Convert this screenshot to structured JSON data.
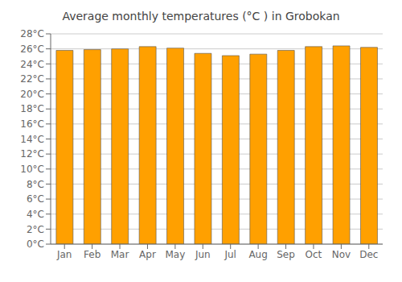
{
  "chart_data": {
    "type": "bar",
    "title": "Average monthly temperatures (°C ) in Grobokan",
    "categories": [
      "Jan",
      "Feb",
      "Mar",
      "Apr",
      "May",
      "Jun",
      "Jul",
      "Aug",
      "Sep",
      "Oct",
      "Nov",
      "Dec"
    ],
    "values": [
      25.8,
      25.9,
      26.0,
      26.3,
      26.1,
      25.4,
      25.1,
      25.3,
      25.8,
      26.3,
      26.4,
      26.2
    ],
    "color": "#FFA000",
    "ylim": [
      0,
      28
    ],
    "yticks": [
      {
        "value": 0,
        "label": "0°C"
      },
      {
        "value": 2,
        "label": "2°C"
      },
      {
        "value": 4,
        "label": "4°C"
      },
      {
        "value": 6,
        "label": "6°C"
      },
      {
        "value": 8,
        "label": "8°C"
      },
      {
        "value": 10,
        "label": "10°C"
      },
      {
        "value": 12,
        "label": "12°C"
      },
      {
        "value": 14,
        "label": "14°C"
      },
      {
        "value": 16,
        "label": "16°C"
      },
      {
        "value": 18,
        "label": "18°C"
      },
      {
        "value": 20,
        "label": "20°C"
      },
      {
        "value": 22,
        "label": "22°C"
      },
      {
        "value": 24,
        "label": "24°C"
      },
      {
        "value": 26,
        "label": "26°C"
      },
      {
        "value": 28,
        "label": "28°C"
      }
    ],
    "grid": true
  }
}
